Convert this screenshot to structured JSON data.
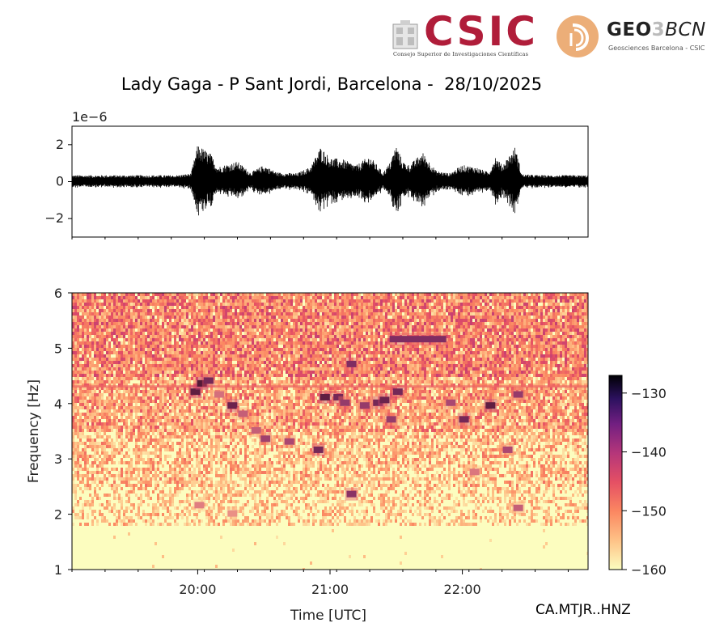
{
  "logos": {
    "csic": "CSIC",
    "csic_subtitle": "Consejo Superior de Investigaciones Científicas",
    "geo_prefix": "GEO",
    "geo_three": "3",
    "geo_suffix": "BCN",
    "geo_subtitle": "Geosciences Barcelona - CSIC",
    "csic_color": "#b01d3a",
    "geo_color": "#e8a56a"
  },
  "title": "Lady Gaga - P Sant Jordi, Barcelona -  28/10/2025",
  "station": "CA.MTJR..HNZ",
  "chart_data": [
    {
      "type": "line",
      "panel": "seismogram",
      "scale_label": "1e−6",
      "ylim": [
        -3,
        3
      ],
      "yticks": [
        2,
        0,
        -2
      ],
      "ytick_labels": [
        "2",
        "0",
        "−2"
      ],
      "xlim_hours": [
        19.05,
        22.95
      ],
      "series": [
        {
          "color": "#000000",
          "envelope_x_hours": [
            19.05,
            19.85,
            19.95,
            20.0,
            20.1,
            20.15,
            20.3,
            20.4,
            20.5,
            20.6,
            20.75,
            20.85,
            20.93,
            21.0,
            21.1,
            21.2,
            21.3,
            21.4,
            21.45,
            21.5,
            21.55,
            21.6,
            21.7,
            21.8,
            21.9,
            22.0,
            22.1,
            22.2,
            22.25,
            22.3,
            22.4,
            22.45,
            22.6,
            22.95
          ],
          "envelope_amp": [
            0.35,
            0.35,
            0.45,
            2.0,
            1.5,
            0.8,
            1.1,
            0.5,
            0.9,
            0.5,
            0.45,
            0.8,
            1.9,
            1.3,
            1.2,
            0.9,
            1.4,
            0.5,
            1.0,
            2.0,
            1.1,
            0.9,
            1.6,
            0.6,
            0.45,
            0.9,
            0.8,
            0.5,
            1.4,
            0.9,
            1.9,
            0.4,
            0.35,
            0.35
          ]
        }
      ]
    },
    {
      "type": "heatmap",
      "panel": "spectrogram",
      "xlabel": "Time [UTC]",
      "ylabel": "Frequency [Hz]",
      "xticks": [
        "20:00",
        "21:00",
        "22:00"
      ],
      "xtick_hours": [
        20,
        21,
        22
      ],
      "xlim_hours": [
        19.05,
        22.95
      ],
      "ylim": [
        1,
        6
      ],
      "yticks": [
        1,
        2,
        3,
        4,
        5,
        6
      ],
      "colormap": "magma",
      "colorbar": {
        "ticks": [
          -130,
          -140,
          -150,
          -160
        ],
        "tick_labels": [
          "−130",
          "−140",
          "−150",
          "−160"
        ],
        "range": [
          -160,
          -127
        ]
      },
      "band_background": [
        {
          "f_min": 1.0,
          "f_max": 1.8,
          "db": -160
        },
        {
          "f_min": 1.8,
          "f_max": 2.5,
          "db": -156
        },
        {
          "f_min": 2.5,
          "f_max": 3.5,
          "db": -154
        },
        {
          "f_min": 3.5,
          "f_max": 4.5,
          "db": -151
        },
        {
          "f_min": 4.5,
          "f_max": 6.0,
          "db": -148
        }
      ],
      "events": [
        {
          "t": 19.97,
          "f": 4.2,
          "db": -128
        },
        {
          "t": 20.02,
          "f": 4.35,
          "db": -127
        },
        {
          "t": 20.07,
          "f": 4.4,
          "db": -130
        },
        {
          "t": 20.15,
          "f": 4.15,
          "db": -140
        },
        {
          "t": 20.25,
          "f": 3.95,
          "db": -129
        },
        {
          "t": 20.33,
          "f": 3.8,
          "db": -138
        },
        {
          "t": 20.43,
          "f": 3.5,
          "db": -138
        },
        {
          "t": 20.5,
          "f": 3.35,
          "db": -134
        },
        {
          "t": 20.68,
          "f": 3.3,
          "db": -135
        },
        {
          "t": 20.9,
          "f": 3.15,
          "db": -130
        },
        {
          "t": 20.95,
          "f": 4.1,
          "db": -128
        },
        {
          "t": 21.05,
          "f": 4.1,
          "db": -130
        },
        {
          "t": 21.1,
          "f": 4.0,
          "db": -133
        },
        {
          "t": 21.15,
          "f": 4.7,
          "db": -131
        },
        {
          "t": 21.15,
          "f": 2.35,
          "db": -132
        },
        {
          "t": 21.25,
          "f": 3.95,
          "db": -133
        },
        {
          "t": 21.35,
          "f": 4.0,
          "db": -130
        },
        {
          "t": 21.4,
          "f": 4.05,
          "db": -129
        },
        {
          "t": 21.45,
          "f": 3.7,
          "db": -133
        },
        {
          "t": 21.5,
          "f": 4.2,
          "db": -130
        },
        {
          "t": 21.6,
          "f": 5.15,
          "db": -131
        },
        {
          "t": 21.9,
          "f": 4.0,
          "db": -135
        },
        {
          "t": 22.0,
          "f": 3.7,
          "db": -130
        },
        {
          "t": 22.08,
          "f": 2.75,
          "db": -141
        },
        {
          "t": 22.2,
          "f": 3.95,
          "db": -128
        },
        {
          "t": 22.33,
          "f": 3.15,
          "db": -135
        },
        {
          "t": 22.41,
          "f": 4.15,
          "db": -133
        },
        {
          "t": 22.41,
          "f": 2.1,
          "db": -138
        },
        {
          "t": 20.0,
          "f": 2.15,
          "db": -142
        },
        {
          "t": 20.25,
          "f": 2.0,
          "db": -144
        }
      ]
    }
  ]
}
